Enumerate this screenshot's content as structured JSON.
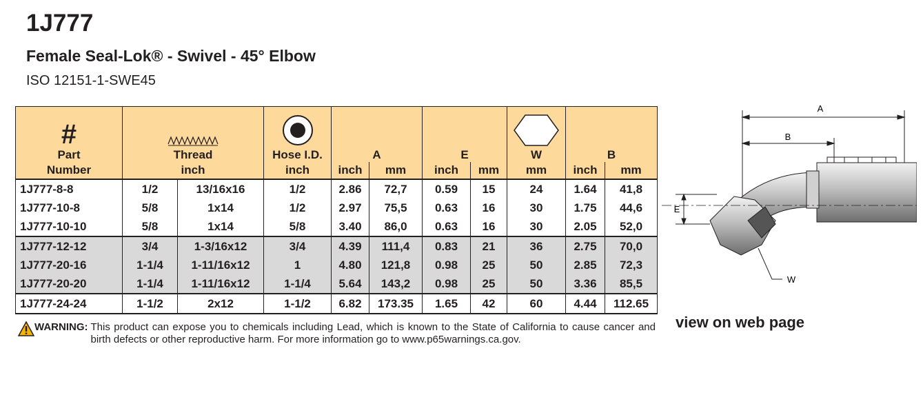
{
  "header": {
    "title": "1J777",
    "subtitle": "Female Seal-Lok® - Swivel - 45° Elbow",
    "standard": "ISO 12151-1-SWE45"
  },
  "table": {
    "columns": [
      {
        "symbol": "#",
        "label": "Part",
        "units": [
          "Number"
        ]
      },
      {
        "label": "Thread",
        "units": [
          "inch"
        ]
      },
      {
        "label": "Hose I.D.",
        "units": [
          "inch"
        ]
      },
      {
        "label": "A",
        "units": [
          "inch",
          "mm"
        ]
      },
      {
        "label": "E",
        "units": [
          "inch",
          "mm"
        ]
      },
      {
        "label": "W",
        "units": [
          "mm"
        ]
      },
      {
        "label": "B",
        "units": [
          "inch",
          "mm"
        ]
      }
    ],
    "row_groups": [
      [
        [
          "1J777-8-8",
          "1/2",
          "13/16x16",
          "1/2",
          "2.86",
          "72,7",
          "0.59",
          "15",
          "24",
          "1.64",
          "41,8"
        ],
        [
          "1J777-10-8",
          "5/8",
          "1x14",
          "1/2",
          "2.97",
          "75,5",
          "0.63",
          "16",
          "30",
          "1.75",
          "44,6"
        ],
        [
          "1J777-10-10",
          "5/8",
          "1x14",
          "5/8",
          "3.40",
          "86,0",
          "0.63",
          "16",
          "30",
          "2.05",
          "52,0"
        ]
      ],
      [
        [
          "1J777-12-12",
          "3/4",
          "1-3/16x12",
          "3/4",
          "4.39",
          "111,4",
          "0.83",
          "21",
          "36",
          "2.75",
          "70,0"
        ],
        [
          "1J777-20-16",
          "1-1/4",
          "1-11/16x12",
          "1",
          "4.80",
          "121,8",
          "0.98",
          "25",
          "50",
          "2.85",
          "72,3"
        ],
        [
          "1J777-20-20",
          "1-1/4",
          "1-11/16x12",
          "1-1/4",
          "5.64",
          "143,2",
          "0.98",
          "25",
          "50",
          "3.36",
          "85,5"
        ]
      ],
      [
        [
          "1J777-24-24",
          "1-1/2",
          "2x12",
          "1-1/2",
          "6.82",
          "173.35",
          "1.65",
          "42",
          "60",
          "4.44",
          "112.65"
        ]
      ]
    ]
  },
  "warning": {
    "label": "WARNING:",
    "text": "This product can expose you to chemicals including Lead, which is known to the State of California to cause cancer and birth defects or other reproductive harm.  For more information go to www.p65warnings.ca.gov."
  },
  "diagram": {
    "labels": {
      "A": "A",
      "B": "B",
      "E": "E",
      "W": "W"
    }
  },
  "link": "view on web page"
}
